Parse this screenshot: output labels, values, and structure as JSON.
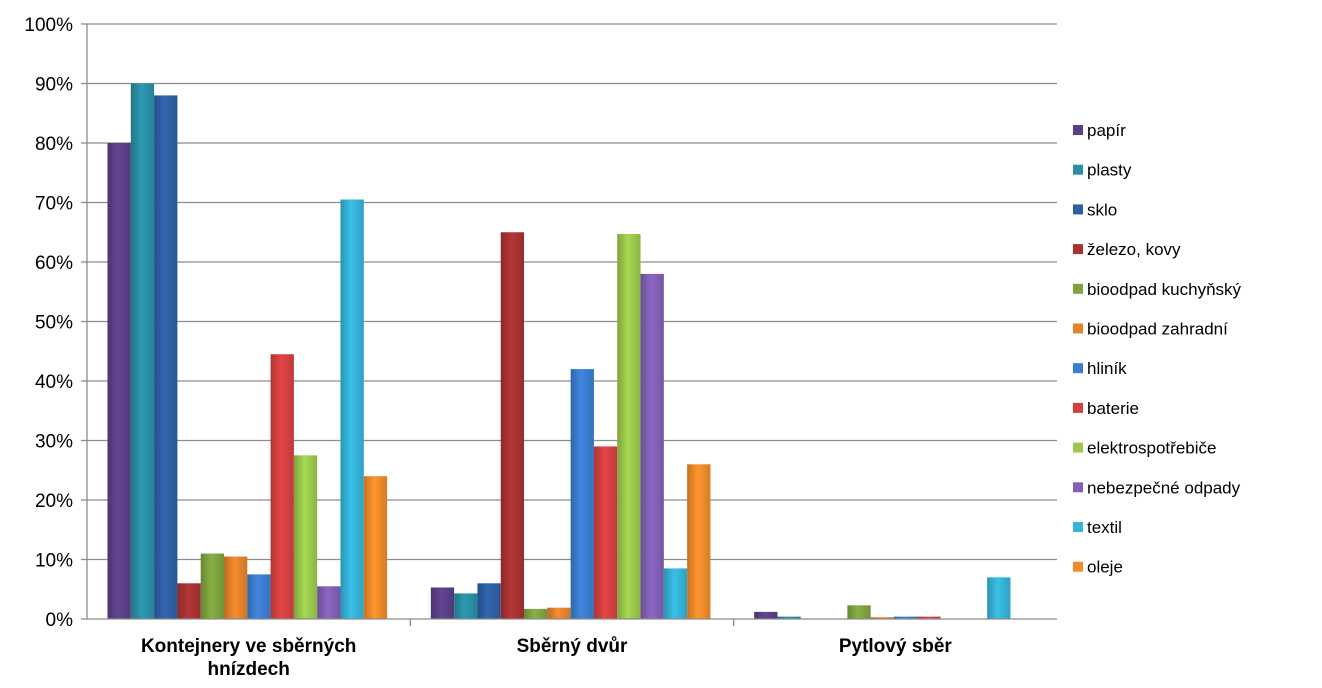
{
  "chart_data": {
    "type": "bar",
    "categories": [
      [
        "Kontejnery ve sběrných",
        "hnízdech"
      ],
      [
        "Sběrný dvůr"
      ],
      [
        "Pytlový sběr"
      ]
    ],
    "yticks": [
      "0%",
      "10%",
      "20%",
      "30%",
      "40%",
      "50%",
      "60%",
      "70%",
      "80%",
      "90%",
      "100%"
    ],
    "ylim": [
      0,
      100
    ],
    "grid": true,
    "legend_position": "right",
    "series": [
      {
        "name": "papír",
        "color": "#5B3F86",
        "values": [
          80,
          5.3,
          1.2
        ]
      },
      {
        "name": "plasty",
        "color": "#2A8FA5",
        "values": [
          90,
          4.3,
          0.4
        ]
      },
      {
        "name": "sklo",
        "color": "#2E5FA3",
        "values": [
          88,
          6,
          0
        ]
      },
      {
        "name": "železo, kovy",
        "color": "#A83232",
        "values": [
          6,
          65,
          0
        ]
      },
      {
        "name": "bioodpad kuchyňský",
        "color": "#7FA33F",
        "values": [
          11,
          1.7,
          2.3
        ]
      },
      {
        "name": "bioodpad zahradní",
        "color": "#E5832B",
        "values": [
          10.5,
          1.9,
          0.3
        ]
      },
      {
        "name": "hliník",
        "color": "#3B7DD0",
        "values": [
          7.5,
          42,
          0.4
        ]
      },
      {
        "name": "baterie",
        "color": "#D44040",
        "values": [
          44.5,
          29,
          0.4
        ]
      },
      {
        "name": "elektrospotřebiče",
        "color": "#9BC84A",
        "values": [
          27.5,
          64.7,
          0
        ]
      },
      {
        "name": "nebezpečné odpady",
        "color": "#8160B5",
        "values": [
          5.5,
          58,
          0
        ]
      },
      {
        "name": "textil",
        "color": "#35B3D8",
        "values": [
          70.5,
          8.5,
          7
        ]
      },
      {
        "name": "oleje",
        "color": "#F08A2A",
        "values": [
          24,
          26,
          0
        ]
      }
    ]
  }
}
